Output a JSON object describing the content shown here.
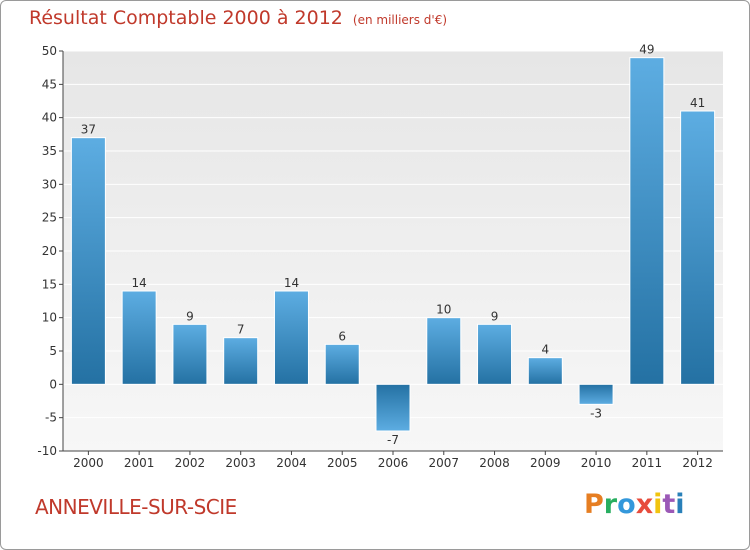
{
  "title": "Résultat Comptable 2000 à 2012",
  "subtitle": "(en milliers d'€)",
  "town": "ANNEVILLE-SUR-SCIE",
  "logo": {
    "text": "Proxiti",
    "colors": [
      "#e67e22",
      "#27ae60",
      "#3498db",
      "#e74c3c",
      "#f1c40f",
      "#9b59b6",
      "#2980b9"
    ]
  },
  "colors": {
    "title": "#c0392b",
    "bar_top": "#5dade2",
    "bar_bottom": "#2471a3",
    "grid": "#d6d6d6",
    "plot_bg": "#ededed"
  },
  "chart_data": {
    "type": "bar",
    "categories": [
      "2000",
      "2001",
      "2002",
      "2003",
      "2004",
      "2005",
      "2006",
      "2007",
      "2008",
      "2009",
      "2010",
      "2011",
      "2012"
    ],
    "values": [
      37,
      14,
      9,
      7,
      14,
      6,
      -7,
      10,
      9,
      4,
      -3,
      49,
      41
    ],
    "yticks": [
      -10,
      -5,
      0,
      5,
      10,
      15,
      20,
      25,
      30,
      35,
      40,
      45,
      50
    ],
    "ylim": [
      -10,
      50
    ],
    "grid": true
  }
}
